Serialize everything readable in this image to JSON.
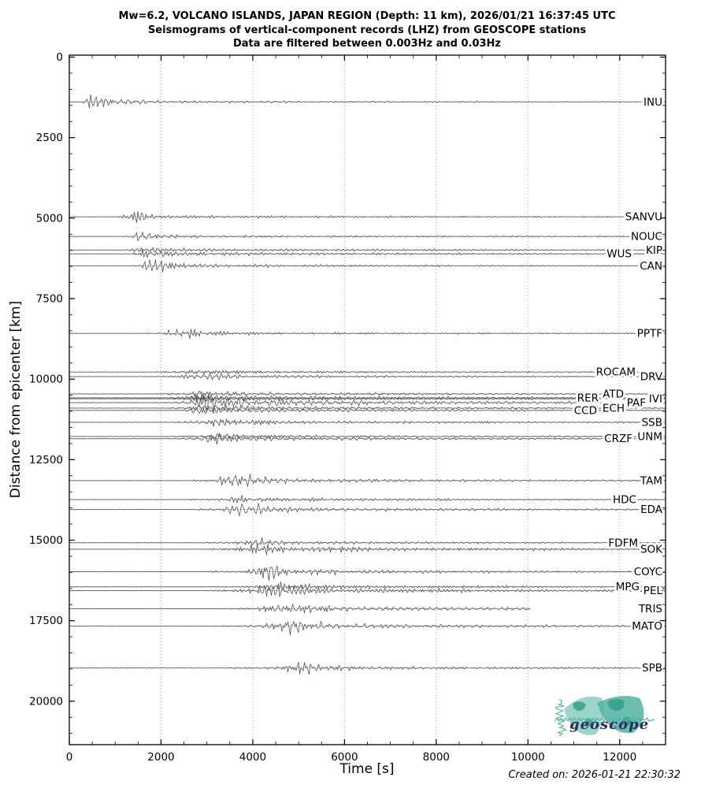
{
  "title": {
    "line1": "Mw=6.2, VOLCANO ISLANDS, JAPAN REGION (Depth: 11 km), 2026/01/21 16:37:45 UTC",
    "line2": "Seismograms of vertical-component records (LHZ) from GEOSCOPE stations",
    "line3": "Data are filtered between 0.003Hz and 0.03Hz"
  },
  "footer": {
    "created_on": "Created on: 2026-01-21 22:30:32"
  },
  "logo": {
    "text": "geoscope",
    "teal_light": "#8fd0c2",
    "teal": "#4fb3a0",
    "teal_dark": "#2e9c8a",
    "text_color": "#2d2d5a"
  },
  "chart_data": {
    "type": "line",
    "subtype": "seismic-record-section",
    "title": "Mw=6.2, VOLCANO ISLANDS, JAPAN REGION (Depth: 11 km), 2026/01/21 16:37:45 UTC",
    "xlabel": "Time [s]",
    "ylabel": "Distance from epicenter [km]",
    "xlim": [
      0,
      13000
    ],
    "ylim": [
      -60,
      21350
    ],
    "y_inverted": true,
    "x_major_ticks": [
      0,
      2000,
      4000,
      6000,
      8000,
      10000,
      12000
    ],
    "x_minor_step": 500,
    "y_major_ticks": [
      0,
      2500,
      5000,
      7500,
      10000,
      12500,
      15000,
      17500,
      20000
    ],
    "y_minor_step": 500,
    "grid": "vertical-dotted-at-x-majors",
    "colors": {
      "trace": "#4a4a4a",
      "baseline": "#b8b8b8",
      "grid": "#9a9a9a",
      "axis": "#000000"
    },
    "stations": [
      {
        "code": "INU",
        "distance_km": 1390,
        "amp": 13,
        "coda": 0.06,
        "label_dx": 0,
        "t_end": 13000
      },
      {
        "code": "SANVU",
        "distance_km": 4960,
        "amp": 9,
        "coda": 0.1,
        "label_dx": 0,
        "t_end": 13000
      },
      {
        "code": "NOUC",
        "distance_km": 5570,
        "amp": 9,
        "coda": 0.12,
        "label_dx": 0,
        "t_end": 13000
      },
      {
        "code": "KIP",
        "distance_km": 5990,
        "amp": 5,
        "coda": 0.3,
        "label_dx": 0,
        "t_end": 13000
      },
      {
        "code": "WUS",
        "distance_km": 6110,
        "amp": 6,
        "coda": 0.3,
        "label_dx": 39,
        "t_end": 13000
      },
      {
        "code": "CAN",
        "distance_km": 6480,
        "amp": 9,
        "coda": 0.15,
        "label_dx": 0,
        "t_end": 13000
      },
      {
        "code": "PPTF",
        "distance_km": 8580,
        "amp": 8,
        "coda": 0.12,
        "label_dx": 0,
        "t_end": 13000
      },
      {
        "code": "ROCAM",
        "distance_km": 9780,
        "amp": 4,
        "coda": 0.25,
        "label_dx": 34,
        "t_end": 13000
      },
      {
        "code": "DRV",
        "distance_km": 9920,
        "amp": 7,
        "coda": 0.25,
        "label_dx": 0,
        "t_end": 13000
      },
      {
        "code": "ATD",
        "distance_km": 10460,
        "amp": 3.5,
        "coda": 0.45,
        "label_dx": 49,
        "t_end": 13000
      },
      {
        "code": "RER",
        "distance_km": 10580,
        "amp": 5,
        "coda": 0.45,
        "label_dx": 81,
        "t_end": 13000
      },
      {
        "code": "IVI",
        "distance_km": 10610,
        "amp": 4,
        "coda": 0.4,
        "label_dx": 0,
        "t_end": 13000
      },
      {
        "code": "PAF",
        "distance_km": 10730,
        "amp": 11,
        "coda": 0.4,
        "label_dx": 21,
        "t_end": 13000
      },
      {
        "code": "ECH",
        "distance_km": 10900,
        "amp": 5,
        "coda": 0.4,
        "label_dx": 48,
        "t_end": 13000
      },
      {
        "code": "CCD",
        "distance_km": 10970,
        "amp": 5,
        "coda": 0.4,
        "label_dx": 83,
        "t_end": 13000
      },
      {
        "code": "SSB",
        "distance_km": 11340,
        "amp": 6,
        "coda": 0.3,
        "label_dx": 0,
        "t_end": 13000
      },
      {
        "code": "UNM",
        "distance_km": 11780,
        "amp": 4,
        "coda": 0.3,
        "label_dx": 0,
        "t_end": 13000
      },
      {
        "code": "CRZF",
        "distance_km": 11850,
        "amp": 7,
        "coda": 0.25,
        "label_dx": 38,
        "t_end": 13000
      },
      {
        "code": "TAM",
        "distance_km": 13150,
        "amp": 9,
        "coda": 0.25,
        "label_dx": 0,
        "t_end": 13000
      },
      {
        "code": "HDC",
        "distance_km": 13740,
        "amp": 6,
        "coda": 0.25,
        "label_dx": 33,
        "t_end": 13000
      },
      {
        "code": "EDA",
        "distance_km": 14050,
        "amp": 9,
        "coda": 0.25,
        "label_dx": 0,
        "t_end": 13000
      },
      {
        "code": "FDFM",
        "distance_km": 15080,
        "amp": 5,
        "coda": 0.3,
        "label_dx": 31,
        "t_end": 13000
      },
      {
        "code": "SOK",
        "distance_km": 15280,
        "amp": 11,
        "coda": 0.28,
        "label_dx": 0,
        "t_end": 13000
      },
      {
        "code": "COYC",
        "distance_km": 15980,
        "amp": 9,
        "coda": 0.25,
        "label_dx": 0,
        "t_end": 13000
      },
      {
        "code": "MPG",
        "distance_km": 16450,
        "amp": 6,
        "coda": 0.3,
        "label_dx": 29,
        "t_end": 13000
      },
      {
        "code": "PEL",
        "distance_km": 16570,
        "amp": 13,
        "coda": 0.25,
        "label_dx": 0,
        "t_end": 13000
      },
      {
        "code": "TRIS",
        "distance_km": 17130,
        "amp": 10,
        "coda": 0.22,
        "label_dx": 0,
        "t_end": 10050
      },
      {
        "code": "MATO",
        "distance_km": 17670,
        "amp": 9,
        "coda": 0.28,
        "label_dx": 0,
        "t_end": 13000
      },
      {
        "code": "SPB",
        "distance_km": 18970,
        "amp": 8,
        "coda": 0.18,
        "label_dx": 0,
        "t_end": 13000
      }
    ]
  }
}
